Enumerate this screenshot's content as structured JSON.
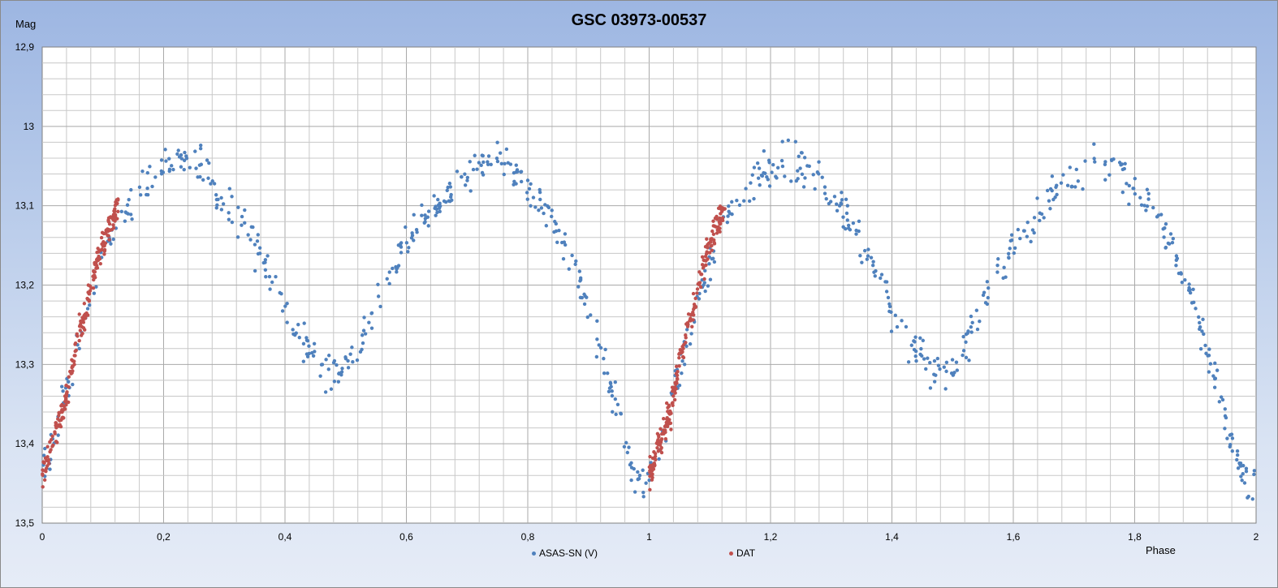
{
  "chart_data": {
    "type": "scatter",
    "title": "GSC 03973-00537",
    "ylabel": "Mag",
    "xlabel": "Phase",
    "xlim": [
      0,
      2
    ],
    "ylim": [
      12.9,
      13.5
    ],
    "y_inverted": true,
    "grid": true,
    "x_ticks": [
      "0",
      "0,2",
      "0,4",
      "0,6",
      "0,8",
      "1",
      "1,2",
      "1,4",
      "1,6",
      "1,8",
      "2"
    ],
    "y_ticks": [
      "12,9",
      "13",
      "13,1",
      "13,2",
      "13,3",
      "13,4",
      "13,5"
    ],
    "legend_position": "bottom",
    "series": [
      {
        "name": "ASAS-SN (V)",
        "color": "#4f81bd",
        "period_in_phase": 1,
        "x": [
          0.0,
          0.01,
          0.02,
          0.03,
          0.04,
          0.05,
          0.06,
          0.07,
          0.08,
          0.09,
          0.1,
          0.11,
          0.12,
          0.13,
          0.14,
          0.15,
          0.16,
          0.17,
          0.18,
          0.19,
          0.2,
          0.21,
          0.22,
          0.23,
          0.24,
          0.25,
          0.26,
          0.27,
          0.28,
          0.29,
          0.3,
          0.31,
          0.32,
          0.33,
          0.34,
          0.35,
          0.36,
          0.37,
          0.38,
          0.39,
          0.4,
          0.41,
          0.42,
          0.43,
          0.44,
          0.45,
          0.46,
          0.47,
          0.48,
          0.49,
          0.5,
          0.51,
          0.52,
          0.53,
          0.54,
          0.55,
          0.56,
          0.57,
          0.58,
          0.59,
          0.6,
          0.61,
          0.62,
          0.63,
          0.64,
          0.65,
          0.66,
          0.67,
          0.68,
          0.69,
          0.7,
          0.71,
          0.72,
          0.73,
          0.74,
          0.75,
          0.76,
          0.77,
          0.78,
          0.79,
          0.8,
          0.81,
          0.82,
          0.83,
          0.84,
          0.85,
          0.86,
          0.87,
          0.88,
          0.89,
          0.9,
          0.91,
          0.92,
          0.93,
          0.94,
          0.95,
          0.96,
          0.97,
          0.98,
          0.99,
          1.0
        ],
        "y": [
          13.44,
          13.42,
          13.39,
          13.36,
          13.33,
          13.31,
          13.28,
          13.25,
          13.22,
          13.19,
          13.17,
          13.15,
          13.13,
          13.11,
          13.1,
          13.09,
          13.08,
          13.07,
          13.06,
          13.05,
          13.05,
          13.05,
          13.04,
          13.04,
          13.04,
          13.05,
          13.05,
          13.06,
          13.07,
          13.08,
          13.09,
          13.1,
          13.11,
          13.12,
          13.13,
          13.15,
          13.16,
          13.18,
          13.19,
          13.21,
          13.23,
          13.24,
          13.26,
          13.27,
          13.28,
          13.29,
          13.3,
          13.31,
          13.31,
          13.31,
          13.3,
          13.29,
          13.28,
          13.26,
          13.24,
          13.22,
          13.21,
          13.19,
          13.18,
          13.16,
          13.15,
          13.14,
          13.13,
          13.12,
          13.11,
          13.1,
          13.09,
          13.08,
          13.07,
          13.07,
          13.06,
          13.06,
          13.05,
          13.05,
          13.05,
          13.05,
          13.05,
          13.06,
          13.06,
          13.07,
          13.08,
          13.09,
          13.1,
          13.11,
          13.12,
          13.14,
          13.15,
          13.17,
          13.19,
          13.21,
          13.23,
          13.26,
          13.29,
          13.31,
          13.34,
          13.37,
          13.4,
          13.42,
          13.44,
          13.45,
          13.45
        ]
      },
      {
        "name": "DAT",
        "color": "#c0504d",
        "period_in_phase": 1,
        "x": [
          0.0,
          0.005,
          0.01,
          0.015,
          0.02,
          0.025,
          0.03,
          0.035,
          0.04,
          0.045,
          0.05,
          0.055,
          0.06,
          0.065,
          0.07,
          0.075,
          0.08,
          0.085,
          0.09,
          0.095,
          0.1,
          0.105,
          0.11,
          0.115,
          0.12,
          0.125
        ],
        "y": [
          13.44,
          13.43,
          13.42,
          13.4,
          13.39,
          13.38,
          13.37,
          13.36,
          13.34,
          13.32,
          13.3,
          13.28,
          13.26,
          13.25,
          13.24,
          13.22,
          13.21,
          13.19,
          13.17,
          13.16,
          13.15,
          13.14,
          13.13,
          13.12,
          13.11,
          13.1
        ]
      }
    ]
  }
}
